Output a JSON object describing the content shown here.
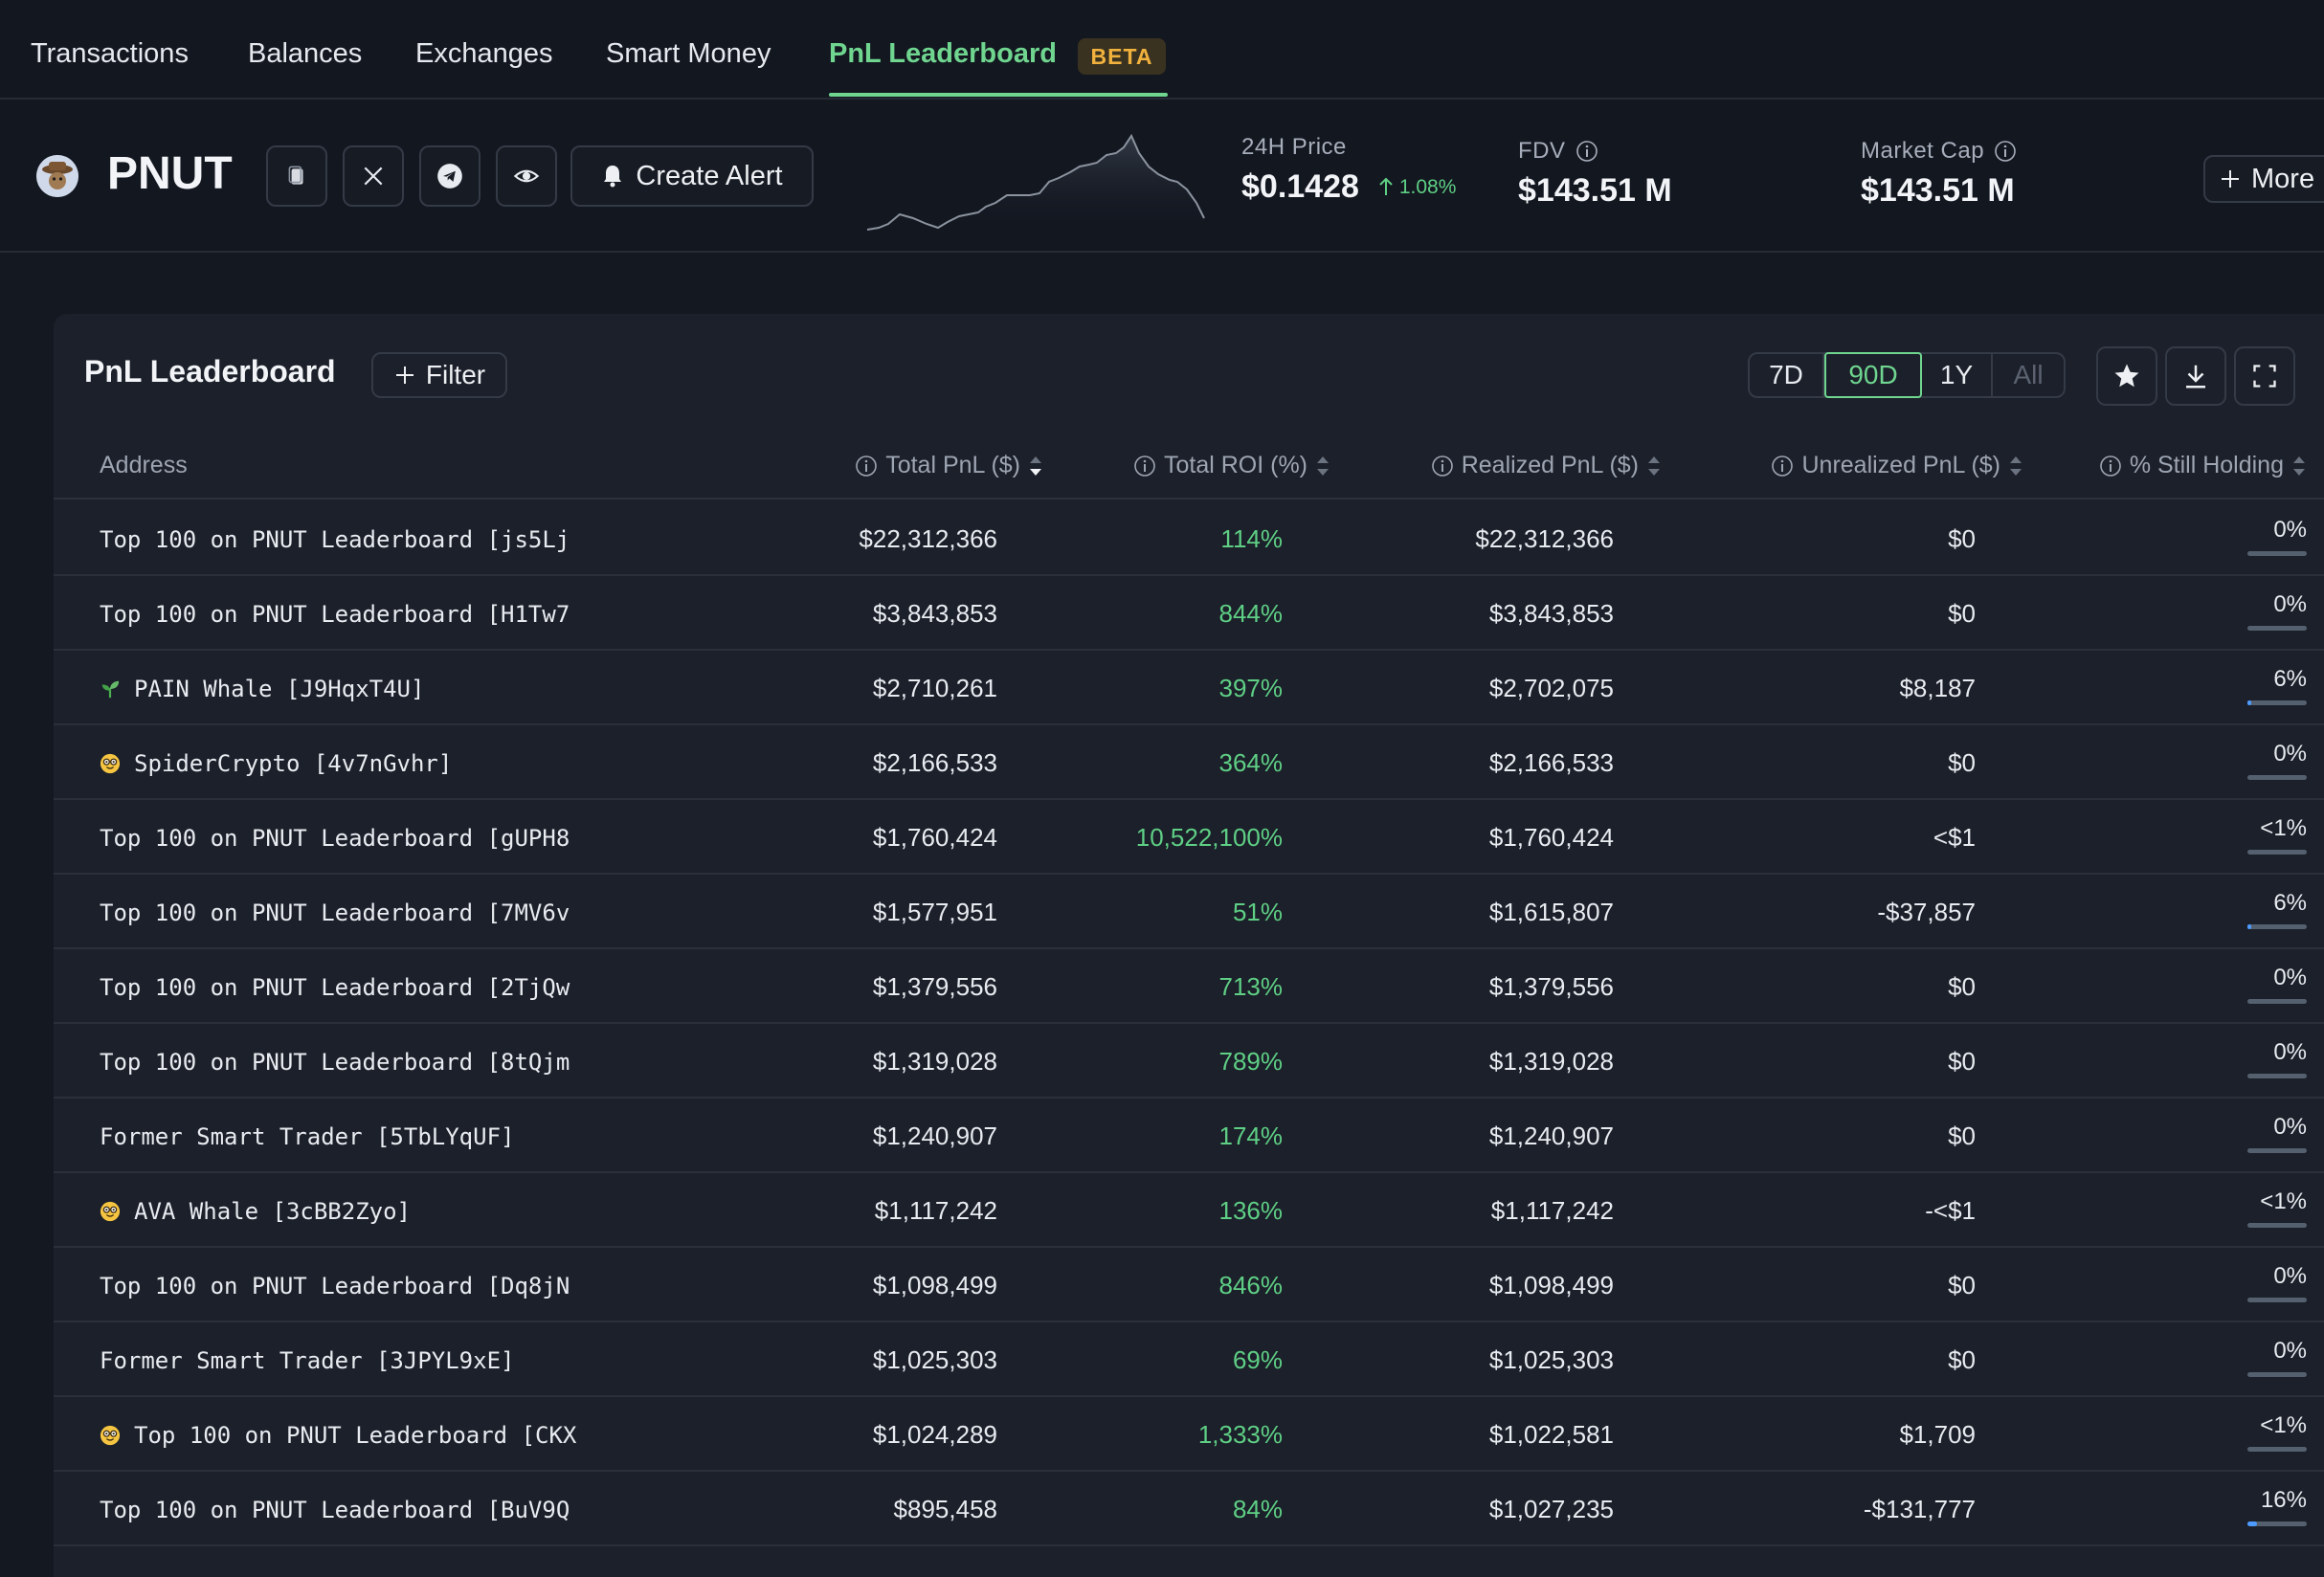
{
  "nav": {
    "tabs": [
      {
        "label": "Transactions"
      },
      {
        "label": "Balances"
      },
      {
        "label": "Exchanges"
      },
      {
        "label": "Smart Money"
      },
      {
        "label": "PnL Leaderboard"
      }
    ],
    "active_tab": "PnL Leaderboard",
    "beta_badge": "BETA"
  },
  "token": {
    "symbol": "PNUT",
    "create_alert_label": "Create Alert",
    "price_label": "24H Price",
    "price_value": "$0.1428",
    "price_change": "1.08%",
    "fdv_label": "FDV",
    "fdv_value": "$143.51 M",
    "mcap_label": "Market Cap",
    "mcap_value": "$143.51 M",
    "more_label": "More"
  },
  "panel": {
    "title": "PnL Leaderboard",
    "filter_label": "Filter",
    "periods": [
      "7D",
      "90D",
      "1Y",
      "All"
    ],
    "active_period": "90D"
  },
  "table": {
    "headers": {
      "address": "Address",
      "total_pnl": "Total PnL ($)",
      "total_roi": "Total ROI (%)",
      "realized": "Realized PnL ($)",
      "unrealized": "Unrealized PnL ($)",
      "holding": "% Still Holding"
    },
    "rows": [
      {
        "address": "Top 100 on PNUT Leaderboard [js5Lj",
        "icon": "",
        "total_pnl": "$22,312,366",
        "roi": "114%",
        "realized": "$22,312,366",
        "unrealized": "$0",
        "holding": "0%",
        "holding_frac": 0
      },
      {
        "address": "Top 100 on PNUT Leaderboard [H1Tw7",
        "icon": "",
        "total_pnl": "$3,843,853",
        "roi": "844%",
        "realized": "$3,843,853",
        "unrealized": "$0",
        "holding": "0%",
        "holding_frac": 0
      },
      {
        "address": "PAIN Whale [J9HqxT4U]",
        "icon": "seedling-icon",
        "total_pnl": "$2,710,261",
        "roi": "397%",
        "realized": "$2,702,075",
        "unrealized": "$8,187",
        "holding": "6%",
        "holding_frac": 0.06
      },
      {
        "address": "SpiderCrypto [4v7nGvhr]",
        "icon": "nerd-face-icon",
        "total_pnl": "$2,166,533",
        "roi": "364%",
        "realized": "$2,166,533",
        "unrealized": "$0",
        "holding": "0%",
        "holding_frac": 0
      },
      {
        "address": "Top 100 on PNUT Leaderboard [gUPH8",
        "icon": "",
        "total_pnl": "$1,760,424",
        "roi": "10,522,100%",
        "realized": "$1,760,424",
        "unrealized": "<$1",
        "holding": "<1%",
        "holding_frac": 0
      },
      {
        "address": "Top 100 on PNUT Leaderboard [7MV6v",
        "icon": "",
        "total_pnl": "$1,577,951",
        "roi": "51%",
        "realized": "$1,615,807",
        "unrealized": "-$37,857",
        "holding": "6%",
        "holding_frac": 0.06
      },
      {
        "address": "Top 100 on PNUT Leaderboard [2TjQw",
        "icon": "",
        "total_pnl": "$1,379,556",
        "roi": "713%",
        "realized": "$1,379,556",
        "unrealized": "$0",
        "holding": "0%",
        "holding_frac": 0
      },
      {
        "address": "Top 100 on PNUT Leaderboard [8tQjm",
        "icon": "",
        "total_pnl": "$1,319,028",
        "roi": "789%",
        "realized": "$1,319,028",
        "unrealized": "$0",
        "holding": "0%",
        "holding_frac": 0
      },
      {
        "address": "Former Smart Trader [5TbLYqUF]",
        "icon": "",
        "total_pnl": "$1,240,907",
        "roi": "174%",
        "realized": "$1,240,907",
        "unrealized": "$0",
        "holding": "0%",
        "holding_frac": 0
      },
      {
        "address": "AVA Whale [3cBB2Zyo]",
        "icon": "nerd-face-icon",
        "total_pnl": "$1,117,242",
        "roi": "136%",
        "realized": "$1,117,242",
        "unrealized": "-<$1",
        "holding": "<1%",
        "holding_frac": 0
      },
      {
        "address": "Top 100 on PNUT Leaderboard [Dq8jN",
        "icon": "",
        "total_pnl": "$1,098,499",
        "roi": "846%",
        "realized": "$1,098,499",
        "unrealized": "$0",
        "holding": "0%",
        "holding_frac": 0
      },
      {
        "address": "Former Smart Trader [3JPYL9xE]",
        "icon": "",
        "total_pnl": "$1,025,303",
        "roi": "69%",
        "realized": "$1,025,303",
        "unrealized": "$0",
        "holding": "0%",
        "holding_frac": 0
      },
      {
        "address": "Top 100 on PNUT Leaderboard [CKX",
        "icon": "nerd-face-icon",
        "total_pnl": "$1,024,289",
        "roi": "1,333%",
        "realized": "$1,022,581",
        "unrealized": "$1,709",
        "holding": "<1%",
        "holding_frac": 0
      },
      {
        "address": "Top 100 on PNUT Leaderboard [BuV9Q",
        "icon": "",
        "total_pnl": "$895,458",
        "roi": "84%",
        "realized": "$1,027,235",
        "unrealized": "-$131,777",
        "holding": "16%",
        "holding_frac": 0.16
      }
    ]
  },
  "colors": {
    "accent_green": "#6fd58f",
    "positive": "#5fcf85",
    "beta": "#f0b13d",
    "holding_bar": "#4e9bff"
  }
}
